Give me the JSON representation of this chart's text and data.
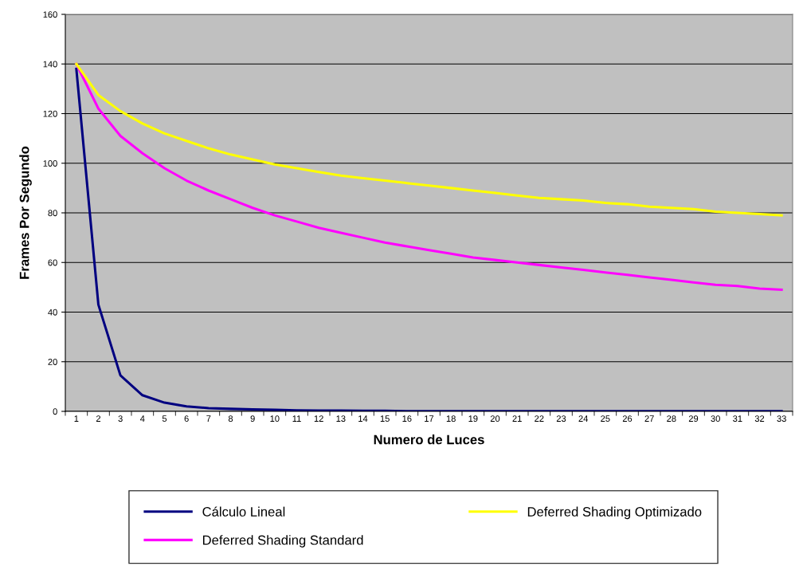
{
  "chart_data": {
    "type": "line",
    "xlabel": "Numero de Luces",
    "ylabel": "Frames Por Segundo",
    "categories": [
      "1",
      "2",
      "3",
      "4",
      "5",
      "6",
      "7",
      "8",
      "9",
      "10",
      "11",
      "12",
      "13",
      "14",
      "15",
      "16",
      "17",
      "18",
      "19",
      "20",
      "21",
      "22",
      "23",
      "24",
      "25",
      "26",
      "27",
      "28",
      "29",
      "30",
      "31",
      "32",
      "33"
    ],
    "series": [
      {
        "name": "Cálculo Lineal",
        "color": "#000080",
        "values": [
          138,
          43,
          14.5,
          6.5,
          3.5,
          2,
          1.3,
          1,
          0.8,
          0.6,
          0.4,
          0.3,
          0.3,
          0.2,
          0.2,
          0.1,
          0.1,
          0.1,
          0.1,
          0.1,
          0.1,
          0.1,
          0.1,
          0.1,
          0.1,
          0.1,
          0.1,
          0.1,
          0.1,
          0.1,
          0.1,
          0.1,
          0.1
        ]
      },
      {
        "name": "Deferred Shading Standard",
        "color": "#ff00ff",
        "values": [
          140,
          122,
          111,
          104,
          98,
          93,
          89,
          85.5,
          82,
          79,
          76.5,
          74,
          72,
          70,
          68,
          66.5,
          65,
          63.5,
          62,
          61,
          60,
          59,
          58,
          57,
          56,
          55,
          54,
          53,
          52,
          51,
          50.5,
          49.5,
          49
        ]
      },
      {
        "name": "Deferred Shading Optimizado",
        "color": "#ffff00",
        "values": [
          140,
          127.5,
          121,
          116,
          112,
          109,
          106,
          103.5,
          101.5,
          99.5,
          98,
          96.5,
          95,
          94,
          93,
          92,
          91,
          90,
          89,
          88,
          87,
          86,
          85.5,
          85,
          84,
          83.5,
          82.5,
          82,
          81.5,
          80.5,
          80,
          79.5,
          79
        ]
      }
    ],
    "ylim": [
      0,
      160
    ],
    "yticks": [
      0,
      20,
      40,
      60,
      80,
      100,
      120,
      140,
      160
    ],
    "grid": "y",
    "legend": "bottom",
    "marker": "none",
    "line_style": "solid"
  }
}
